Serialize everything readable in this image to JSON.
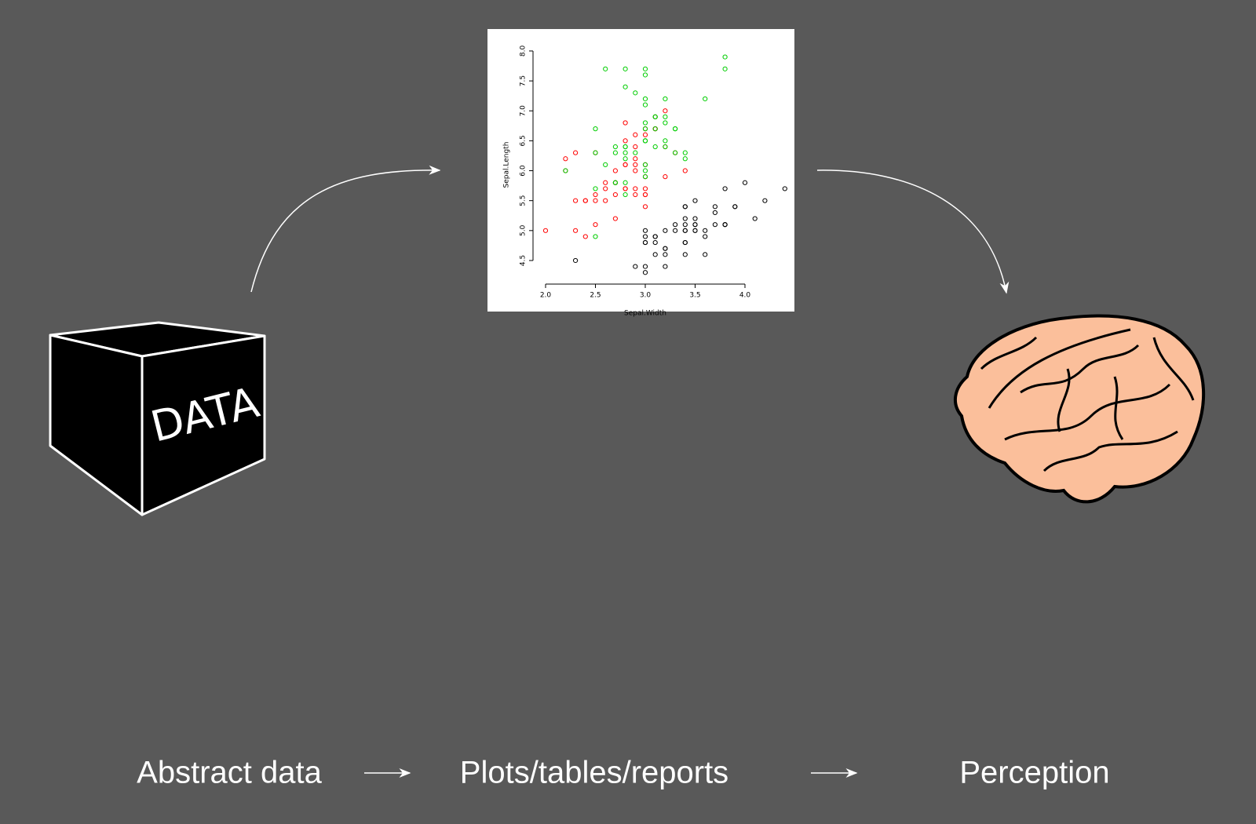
{
  "chart_data": {
    "type": "scatter",
    "x_label": "Sepal.Width",
    "y_label": "Sepal.Length",
    "xlim": [
      1.904,
      4.496
    ],
    "ylim": [
      4.156,
      8.044
    ],
    "xticks": [
      {
        "value": 2,
        "label": "2.0"
      },
      {
        "value": 2.5,
        "label": "2.5"
      },
      {
        "value": 3,
        "label": "3.0"
      },
      {
        "value": 3.5,
        "label": "3.5"
      },
      {
        "value": 4,
        "label": "4.0"
      }
    ],
    "yticks": [
      {
        "value": 4.5,
        "label": "4.5"
      },
      {
        "value": 5,
        "label": "5.0"
      },
      {
        "value": 5.5,
        "label": "5.5"
      },
      {
        "value": 6,
        "label": "6.0"
      },
      {
        "value": 6.5,
        "label": "6.5"
      },
      {
        "value": 7,
        "label": "7.0"
      },
      {
        "value": 7.5,
        "label": "7.5"
      },
      {
        "value": 8,
        "label": "8.0"
      }
    ],
    "series": [
      {
        "color": "#000000",
        "x": [
          3.5,
          3.0,
          3.2,
          3.1,
          3.6,
          3.9,
          3.4,
          3.4,
          2.9,
          3.1,
          3.7,
          3.4,
          3.0,
          3.0,
          4.0,
          4.4,
          3.9,
          3.5,
          3.8,
          3.8,
          3.4,
          3.7,
          3.6,
          3.3,
          3.4,
          3.0,
          3.4,
          3.5,
          3.4,
          3.2,
          3.1,
          3.4,
          4.1,
          4.2,
          3.1,
          3.2,
          3.5,
          3.6,
          3.0,
          3.4,
          3.5,
          2.3,
          3.2,
          3.5,
          3.8,
          3.0,
          3.8,
          3.2,
          3.7,
          3.3
        ],
        "values": [
          5.1,
          4.9,
          4.7,
          4.6,
          5.0,
          5.4,
          4.6,
          5.0,
          4.4,
          4.9,
          5.4,
          4.8,
          4.8,
          4.3,
          5.8,
          5.7,
          5.4,
          5.1,
          5.7,
          5.1,
          5.4,
          5.1,
          4.6,
          5.1,
          4.8,
          5.0,
          5.0,
          5.2,
          5.2,
          4.7,
          4.8,
          5.4,
          5.2,
          5.5,
          4.9,
          5.0,
          5.5,
          4.9,
          4.4,
          5.1,
          5.0,
          4.5,
          4.4,
          5.0,
          5.1,
          4.8,
          5.1,
          4.6,
          5.3,
          5.0
        ]
      },
      {
        "color": "#ff0000",
        "x": [
          3.2,
          3.2,
          3.1,
          2.3,
          2.8,
          2.8,
          3.3,
          2.4,
          2.9,
          2.7,
          2.0,
          3.0,
          2.2,
          2.9,
          2.9,
          3.1,
          3.0,
          2.7,
          2.2,
          2.5,
          3.2,
          2.8,
          2.5,
          2.8,
          2.9,
          3.0,
          2.8,
          3.0,
          2.9,
          2.6,
          2.4,
          2.4,
          2.7,
          2.7,
          3.0,
          3.4,
          3.1,
          2.3,
          3.0,
          2.5,
          2.6,
          3.0,
          2.6,
          2.3,
          2.7,
          3.0,
          2.9,
          2.9,
          2.5,
          2.8
        ],
        "values": [
          7.0,
          6.4,
          6.9,
          5.5,
          6.5,
          5.7,
          6.3,
          4.9,
          6.6,
          5.2,
          5.0,
          5.9,
          6.0,
          6.1,
          5.6,
          6.7,
          5.6,
          5.8,
          6.2,
          5.6,
          5.9,
          6.1,
          6.3,
          6.1,
          6.4,
          6.6,
          6.8,
          6.7,
          6.0,
          5.7,
          5.5,
          5.5,
          5.8,
          6.0,
          5.4,
          6.0,
          6.7,
          6.3,
          5.6,
          5.5,
          5.5,
          6.1,
          5.8,
          5.0,
          5.6,
          5.7,
          5.7,
          6.2,
          5.1,
          5.7
        ]
      },
      {
        "color": "#00cd00",
        "x": [
          3.3,
          2.7,
          3.0,
          2.9,
          3.0,
          3.0,
          2.5,
          2.9,
          2.5,
          3.6,
          3.2,
          2.7,
          3.0,
          2.5,
          2.8,
          3.2,
          3.0,
          3.8,
          2.6,
          2.2,
          3.2,
          2.8,
          2.8,
          2.7,
          3.3,
          3.2,
          2.8,
          3.0,
          2.8,
          3.0,
          2.8,
          3.8,
          2.8,
          2.8,
          2.6,
          3.0,
          3.4,
          3.1,
          3.0,
          3.1,
          3.1,
          3.1,
          2.7,
          3.2,
          3.3,
          3.0,
          2.5,
          3.0,
          3.4,
          3.0
        ],
        "values": [
          6.3,
          5.8,
          7.1,
          6.3,
          6.5,
          7.6,
          4.9,
          7.3,
          6.7,
          7.2,
          6.5,
          6.4,
          6.8,
          5.7,
          5.8,
          6.4,
          6.5,
          7.7,
          7.7,
          6.0,
          6.9,
          5.6,
          7.7,
          6.3,
          6.7,
          7.2,
          6.2,
          6.1,
          6.4,
          7.2,
          7.4,
          7.9,
          6.4,
          6.3,
          6.1,
          7.7,
          6.3,
          6.4,
          6.0,
          6.9,
          6.7,
          6.9,
          5.8,
          6.8,
          6.7,
          6.7,
          6.3,
          6.5,
          6.2,
          5.9
        ]
      }
    ]
  },
  "cube": {
    "label": "DATA"
  },
  "steps": [
    "Abstract data",
    "Plots/tables/reports",
    "Perception"
  ]
}
